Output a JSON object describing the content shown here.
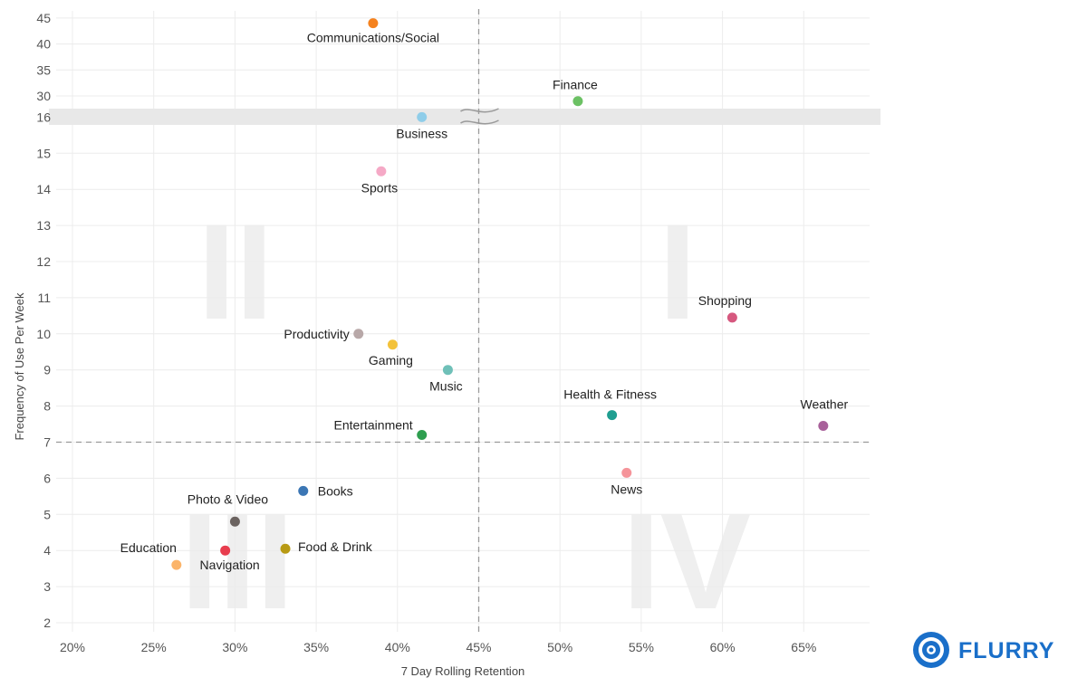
{
  "chart_data": {
    "type": "scatter",
    "xlabel": "7 Day Rolling Retention",
    "ylabel": "Frequency of Use Per Week",
    "x_ticks": [
      "20%",
      "25%",
      "30%",
      "35%",
      "40%",
      "45%",
      "50%",
      "55%",
      "60%",
      "65%"
    ],
    "x_tick_values": [
      20,
      25,
      30,
      35,
      40,
      45,
      50,
      55,
      60,
      65
    ],
    "y_ticks_lower": [
      "2",
      "3",
      "4",
      "5",
      "6",
      "7",
      "8",
      "9",
      "10",
      "11",
      "12",
      "13",
      "14",
      "15",
      "16"
    ],
    "y_ticks_upper": [
      "30",
      "35",
      "40",
      "45"
    ],
    "y_axis_break": "between 16 and 30",
    "reference_lines": {
      "x": 45,
      "y": 7
    },
    "quadrant_labels": [
      "I",
      "II",
      "III",
      "IV"
    ],
    "grid": true,
    "points": [
      {
        "label": "Communications/Social",
        "x": 38.5,
        "y": 44,
        "color": "#f5821f"
      },
      {
        "label": "Finance",
        "x": 51.1,
        "y": 29,
        "color": "#6cc164"
      },
      {
        "label": "Business",
        "x": 41.5,
        "y": 16,
        "color": "#8fcde9"
      },
      {
        "label": "Sports",
        "x": 39,
        "y": 14.5,
        "color": "#f5a9c6"
      },
      {
        "label": "Shopping",
        "x": 60.6,
        "y": 10.45,
        "color": "#d6587f"
      },
      {
        "label": "Productivity",
        "x": 37.6,
        "y": 10,
        "color": "#b8a8a8"
      },
      {
        "label": "Gaming",
        "x": 39.7,
        "y": 9.7,
        "color": "#f3c23a"
      },
      {
        "label": "Music",
        "x": 43.1,
        "y": 9,
        "color": "#6fc0b8"
      },
      {
        "label": "Health & Fitness",
        "x": 53.2,
        "y": 7.75,
        "color": "#1f9e90"
      },
      {
        "label": "Weather",
        "x": 66.2,
        "y": 7.45,
        "color": "#a8619a"
      },
      {
        "label": "Entertainment",
        "x": 41.5,
        "y": 7.2,
        "color": "#2e9e4f"
      },
      {
        "label": "News",
        "x": 54.1,
        "y": 6.15,
        "color": "#f5949a"
      },
      {
        "label": "Books",
        "x": 34.2,
        "y": 5.65,
        "color": "#3b76b4"
      },
      {
        "label": "Photo & Video",
        "x": 30,
        "y": 4.8,
        "color": "#6b6360"
      },
      {
        "label": "Food & Drink",
        "x": 33.1,
        "y": 4.05,
        "color": "#b89a14"
      },
      {
        "label": "Navigation",
        "x": 29.4,
        "y": 4,
        "color": "#e83d4e"
      },
      {
        "label": "Education",
        "x": 26.4,
        "y": 3.6,
        "color": "#fbb46a"
      }
    ]
  },
  "brand": {
    "logo_text": "FLURRY",
    "logo_icon": "flurry-swirl-icon",
    "color": "#1a6fc9"
  }
}
